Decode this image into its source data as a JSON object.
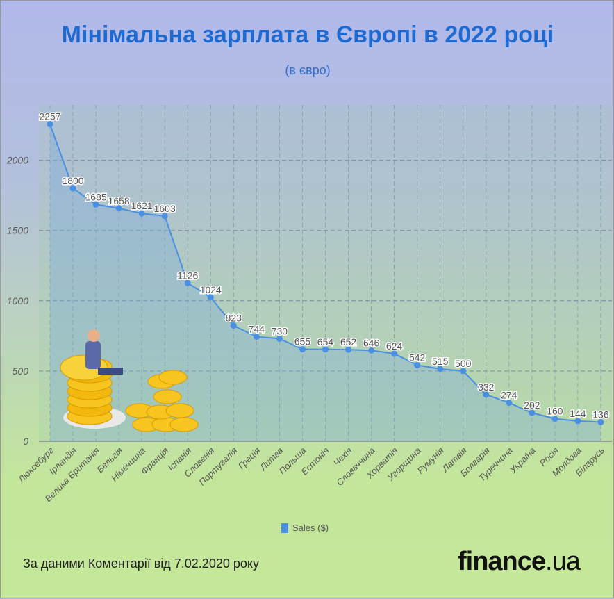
{
  "header": {
    "title": "Мінімальна зарплата в Європі в 2022 році",
    "subtitle": "(в євро)"
  },
  "chart_data": {
    "type": "area",
    "title": "Мінімальна зарплата в Європі в 2022 році",
    "subtitle": "(в євро)",
    "xlabel": "",
    "ylabel": "",
    "ylim": [
      0,
      2300
    ],
    "yticks": [
      0,
      500,
      1000,
      1500,
      2000
    ],
    "grid": true,
    "legend": "bottom-center",
    "categories": [
      "Люксебург",
      "Ірландія",
      "Велика Британія",
      "Бельгія",
      "Німечиина",
      "Франція",
      "Іспанія",
      "Словенія",
      "Португалія",
      "Греція",
      "Литва",
      "Польша",
      "Естонія",
      "Чехія",
      "Словаччина",
      "Хорватія",
      "Угорщина",
      "Румунія",
      "Латвія",
      "Болгарія",
      "Туреччина",
      "Україна",
      "Росія",
      "Молдова",
      "Біларусь"
    ],
    "series": [
      {
        "name": "Sales ($)",
        "color": "#4a90e2",
        "values": [
          2257,
          1800,
          1685,
          1658,
          1621,
          1603,
          1126,
          1024,
          823,
          744,
          730,
          655,
          654,
          652,
          646,
          624,
          542,
          515,
          500,
          332,
          274,
          202,
          160,
          144,
          136
        ]
      }
    ]
  },
  "footer": {
    "source": "За даними Коментарії від 7.02.2020 року",
    "logo_main": "finance",
    "logo_tld": ".ua"
  }
}
